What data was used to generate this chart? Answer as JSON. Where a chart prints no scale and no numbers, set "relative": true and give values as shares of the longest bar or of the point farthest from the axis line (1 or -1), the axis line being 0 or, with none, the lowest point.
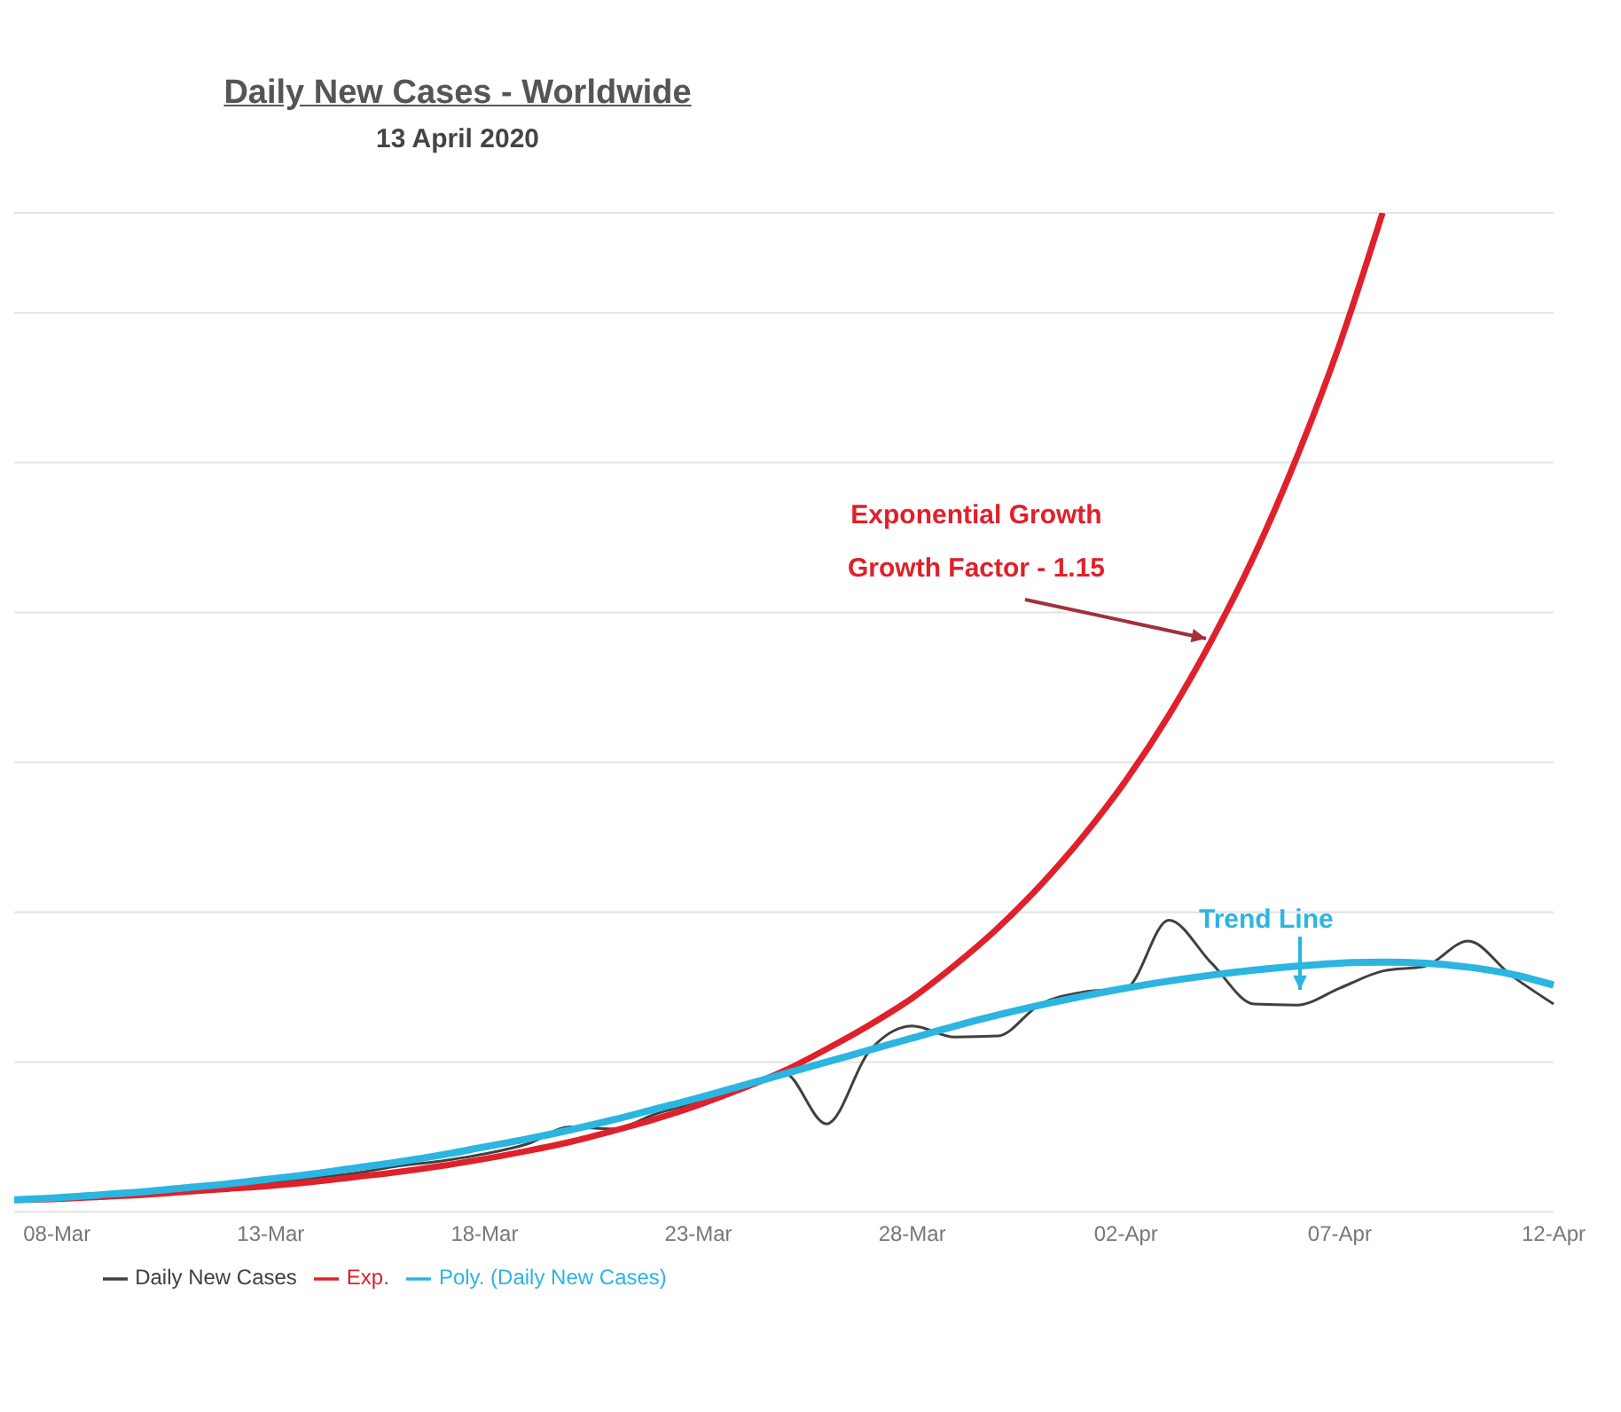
{
  "chart_data": {
    "type": "line",
    "title": "Daily New Cases - Worldwide",
    "subtitle": "13 April 2020",
    "relative": true,
    "categories": [
      null,
      "08-Mar",
      null,
      null,
      null,
      null,
      "13-Mar",
      null,
      null,
      null,
      null,
      "18-Mar",
      null,
      null,
      null,
      null,
      "23-Mar",
      null,
      null,
      null,
      null,
      "28-Mar",
      null,
      null,
      null,
      null,
      "02-Apr",
      null,
      null,
      null,
      null,
      "07-Apr",
      null,
      null,
      null,
      null,
      "12-Apr"
    ],
    "series": [
      {
        "name": "Daily New Cases",
        "color": "#404040",
        "values": [
          0.012,
          0.014,
          0.015,
          0.019,
          0.022,
          0.025,
          0.029,
          0.034,
          0.039,
          0.046,
          0.051,
          0.058,
          0.068,
          0.085,
          0.083,
          0.098,
          0.11,
          0.124,
          0.139,
          0.088,
          0.161,
          0.186,
          0.175,
          0.176,
          0.208,
          0.22,
          0.224,
          0.292,
          0.249,
          0.208,
          0.207,
          0.224,
          0.241,
          0.246,
          0.271,
          0.237,
          0.208
        ]
      },
      {
        "name": "Exp.",
        "color": "#e0202a",
        "values": [
          0.012,
          0.013,
          0.015,
          0.017,
          0.02,
          0.023,
          0.026,
          0.03,
          0.035,
          0.04,
          0.046,
          0.053,
          0.061,
          0.07,
          0.081,
          0.093,
          0.107,
          0.123,
          0.141,
          0.163,
          0.187,
          0.214,
          0.247,
          0.284,
          0.327,
          0.376,
          0.432,
          0.497,
          0.572,
          0.657,
          0.756,
          0.869,
          1,
          null,
          null,
          null,
          null
        ]
      },
      {
        "name": "Poly. (Daily New Cases)",
        "color": "#2bb5e0",
        "values": [
          0.012,
          0.014,
          0.017,
          0.02,
          0.024,
          0.028,
          0.033,
          0.038,
          0.044,
          0.05,
          0.057,
          0.065,
          0.073,
          0.082,
          0.092,
          0.103,
          0.114,
          0.126,
          0.138,
          0.15,
          0.162,
          0.174,
          0.186,
          0.197,
          0.207,
          0.216,
          0.224,
          0.231,
          0.237,
          0.242,
          0.246,
          0.249,
          0.25,
          0.249,
          0.245,
          0.238,
          0.227
        ]
      }
    ],
    "annotations": [
      "Exponential Growth\nGrowth Factor - 1.15",
      "Trend Line"
    ],
    "grid": "y",
    "legend": "bottom",
    "marker": "none"
  }
}
